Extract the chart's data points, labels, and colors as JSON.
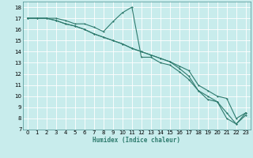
{
  "xlabel": "Humidex (Indice chaleur)",
  "background_color": "#c8ecec",
  "grid_color": "#b8dada",
  "line_color": "#2e7b6e",
  "xlim": [
    -0.5,
    23.5
  ],
  "ylim": [
    7,
    18.5
  ],
  "xticks": [
    0,
    1,
    2,
    3,
    4,
    5,
    6,
    7,
    8,
    9,
    10,
    11,
    12,
    13,
    14,
    15,
    16,
    17,
    18,
    19,
    20,
    21,
    22,
    23
  ],
  "yticks": [
    7,
    8,
    9,
    10,
    11,
    12,
    13,
    14,
    15,
    16,
    17,
    18
  ],
  "series1_x": [
    0,
    1,
    2,
    3,
    4,
    5,
    6,
    7,
    8,
    9,
    10,
    11,
    12,
    13,
    14,
    15,
    16,
    17,
    18,
    19,
    20,
    21,
    22,
    23
  ],
  "series1_y": [
    17,
    17,
    17,
    17,
    16.8,
    16.5,
    16.5,
    16.2,
    15.8,
    16.7,
    17.5,
    18,
    13.5,
    13.5,
    13.0,
    12.8,
    12.2,
    11.5,
    10.5,
    9.7,
    9.5,
    8.0,
    7.5,
    8.5
  ],
  "series2_x": [
    0,
    1,
    2,
    3,
    4,
    5,
    6,
    7,
    8,
    9,
    10,
    11,
    12,
    13,
    14,
    15,
    16,
    17,
    18,
    19,
    20,
    21,
    22,
    23
  ],
  "series2_y": [
    17,
    17,
    17,
    16.8,
    16.5,
    16.3,
    16.0,
    15.6,
    15.3,
    15.0,
    14.7,
    14.3,
    14.0,
    13.7,
    13.4,
    13.1,
    12.7,
    12.3,
    11.0,
    10.5,
    10.0,
    9.8,
    8.0,
    8.5
  ],
  "series3_x": [
    0,
    1,
    2,
    3,
    4,
    5,
    6,
    7,
    8,
    9,
    10,
    11,
    12,
    13,
    14,
    15,
    16,
    17,
    18,
    19,
    20,
    21,
    22,
    23
  ],
  "series3_y": [
    17,
    17,
    17,
    16.8,
    16.5,
    16.3,
    16.0,
    15.6,
    15.3,
    15.0,
    14.7,
    14.3,
    14.0,
    13.7,
    13.4,
    13.1,
    12.5,
    11.8,
    10.5,
    10.0,
    9.5,
    8.5,
    7.5,
    8.3
  ]
}
